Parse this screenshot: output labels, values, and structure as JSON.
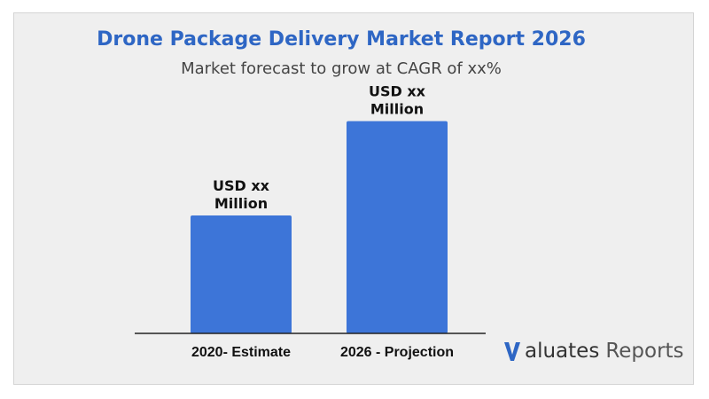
{
  "header": {
    "title": "Drone Package Delivery Market Report 2026",
    "subtitle": "Market forecast to grow at CAGR of xx%"
  },
  "colors": {
    "title": "#2e66c4",
    "bar": "#3d75d8",
    "axis": "#222222",
    "background": "#efefef"
  },
  "chart_data": {
    "type": "bar",
    "categories": [
      "2020- Estimate",
      "2026 - Projection"
    ],
    "values": [
      1.0,
      1.8
    ],
    "data_labels": [
      [
        "USD xx",
        "Million"
      ],
      [
        "USD xx",
        "Million"
      ]
    ],
    "title": "",
    "xlabel": "",
    "ylabel": "",
    "ylim": [
      0,
      2.0
    ],
    "grid": false,
    "legend": "none"
  },
  "logo": {
    "brand": "aluates",
    "suffix": "Reports"
  }
}
